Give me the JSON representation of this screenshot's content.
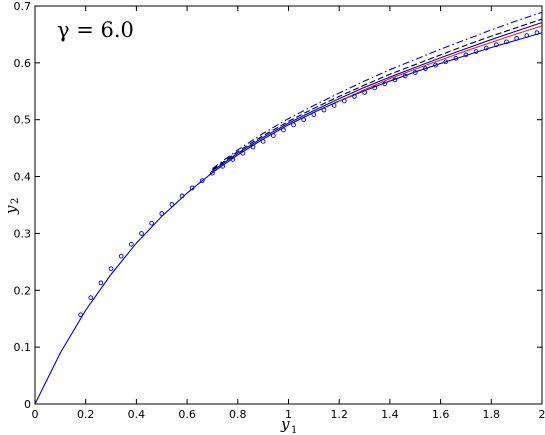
{
  "chart_data": {
    "type": "line",
    "annotation": "γ = 6.0",
    "xlabel": "y",
    "xlabel_sub": "1",
    "ylabel": "y",
    "ylabel_sub": "2",
    "xlim": [
      0,
      2
    ],
    "ylim": [
      0,
      0.7
    ],
    "xticks": [
      0,
      0.2,
      0.4,
      0.6,
      0.8,
      1,
      1.2,
      1.4,
      1.6,
      1.8,
      2
    ],
    "xtick_labels": [
      "0",
      "0.2",
      "0.4",
      "0.6",
      "0.8",
      "1",
      "1.2",
      "1.4",
      "1.6",
      "1.8",
      "2"
    ],
    "yticks": [
      0,
      0.1,
      0.2,
      0.3,
      0.4,
      0.5,
      0.6,
      0.7
    ],
    "ytick_labels": [
      "0",
      "0.1",
      "0.2",
      "0.3",
      "0.4",
      "0.5",
      "0.6",
      "0.7"
    ],
    "grid": false,
    "series": [
      {
        "style": "solid",
        "color": "#0000cc",
        "x": [
          0,
          0.1,
          0.2,
          0.3,
          0.4,
          0.5,
          0.6,
          0.7,
          0.8,
          0.9,
          1.0,
          1.1,
          1.2,
          1.3,
          1.4,
          1.5,
          1.6,
          1.7,
          1.8,
          1.9,
          2.0
        ],
        "y": [
          0,
          0.09,
          0.165,
          0.228,
          0.283,
          0.33,
          0.371,
          0.407,
          0.438,
          0.466,
          0.491,
          0.513,
          0.533,
          0.551,
          0.568,
          0.584,
          0.599,
          0.613,
          0.627,
          0.64,
          0.653
        ]
      },
      {
        "style": "solid",
        "color": "#ee2222",
        "x": [
          1.2,
          1.3,
          1.4,
          1.5,
          1.6,
          1.7,
          1.8,
          1.9,
          2.0
        ],
        "y": [
          0.533,
          0.553,
          0.572,
          0.589,
          0.605,
          0.621,
          0.636,
          0.651,
          0.665
        ]
      },
      {
        "style": "solid",
        "color": "#0000cc",
        "x": [
          0.7,
          0.8,
          0.9,
          1.0,
          1.1,
          1.2,
          1.3,
          1.4,
          1.5,
          1.6,
          1.7,
          1.8,
          1.9,
          2.0
        ],
        "y": [
          0.41,
          0.441,
          0.469,
          0.494,
          0.516,
          0.537,
          0.557,
          0.575,
          0.592,
          0.609,
          0.625,
          0.641,
          0.656,
          0.671
        ]
      },
      {
        "style": "dashed",
        "color": "#000000",
        "x": [
          0.7,
          0.8,
          0.9,
          1.0,
          1.1,
          1.2,
          1.3,
          1.4,
          1.5,
          1.6,
          1.7,
          1.8,
          1.9,
          2.0
        ],
        "y": [
          0.412,
          0.444,
          0.472,
          0.497,
          0.52,
          0.541,
          0.561,
          0.58,
          0.597,
          0.614,
          0.631,
          0.647,
          0.662,
          0.677
        ]
      },
      {
        "style": "dashdot",
        "color": "#0000cc",
        "x": [
          0.7,
          0.8,
          0.9,
          1.0,
          1.1,
          1.2,
          1.3,
          1.4,
          1.5,
          1.6,
          1.7,
          1.8,
          1.9,
          2.0
        ],
        "y": [
          0.414,
          0.447,
          0.476,
          0.502,
          0.525,
          0.547,
          0.568,
          0.588,
          0.606,
          0.624,
          0.641,
          0.658,
          0.674,
          0.689
        ]
      },
      {
        "style": "markers",
        "color": "#0000cc",
        "x": [
          0.18,
          0.22,
          0.26,
          0.3,
          0.34,
          0.38,
          0.42,
          0.46,
          0.5,
          0.54,
          0.58,
          0.62,
          0.66,
          0.7,
          0.74,
          0.78,
          0.82,
          0.86,
          0.9,
          0.94,
          0.98,
          1.02,
          1.06,
          1.1,
          1.14,
          1.18,
          1.22,
          1.26,
          1.3,
          1.34,
          1.38,
          1.42,
          1.46,
          1.5,
          1.54,
          1.58,
          1.62,
          1.66,
          1.7,
          1.74,
          1.78,
          1.82,
          1.86,
          1.9,
          1.94,
          1.98
        ],
        "y": [
          0.157,
          0.187,
          0.213,
          0.238,
          0.26,
          0.281,
          0.3,
          0.318,
          0.335,
          0.351,
          0.366,
          0.38,
          0.393,
          0.406,
          0.418,
          0.43,
          0.441,
          0.452,
          0.462,
          0.472,
          0.482,
          0.491,
          0.5,
          0.509,
          0.517,
          0.525,
          0.533,
          0.541,
          0.548,
          0.556,
          0.563,
          0.57,
          0.577,
          0.583,
          0.59,
          0.596,
          0.602,
          0.608,
          0.614,
          0.62,
          0.626,
          0.632,
          0.637,
          0.643,
          0.648,
          0.653
        ]
      }
    ]
  }
}
